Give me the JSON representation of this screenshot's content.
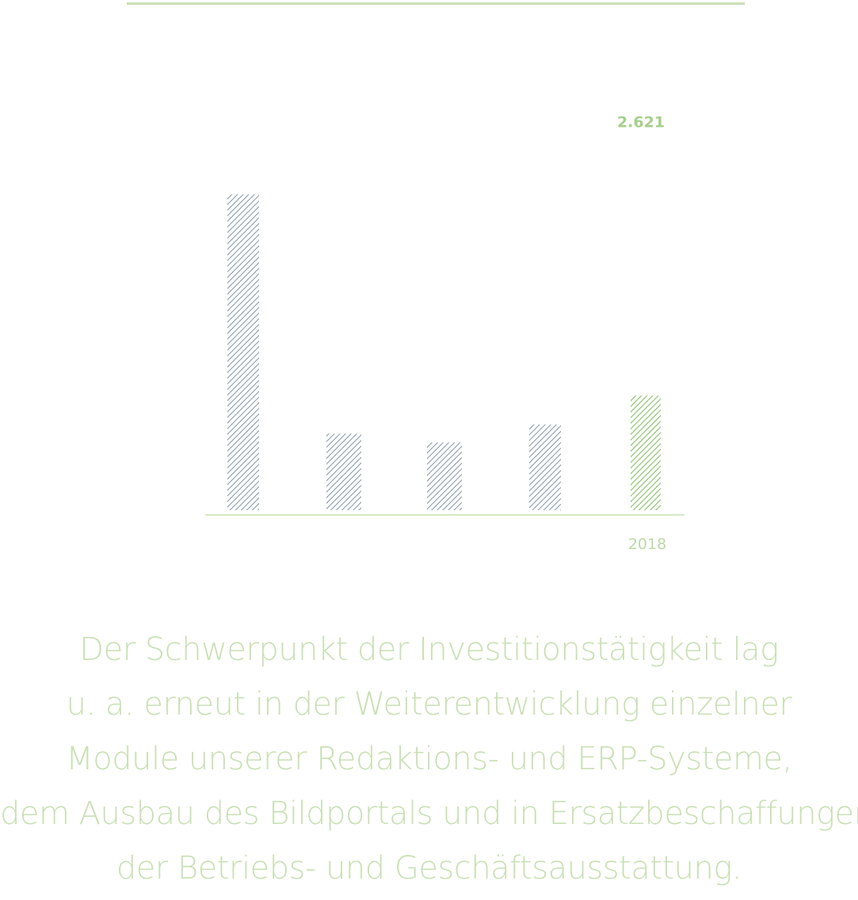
{
  "colors": {
    "accent_green": "#c9e0b4",
    "highlight_bar": "#96c87a",
    "highlight_label": "#a5cf8a",
    "history_bar": "#8d9cad",
    "axis_label": "#bdd8a8"
  },
  "chart_data": {
    "type": "bar",
    "categories": [
      "",
      "",
      "",
      "",
      "2018"
    ],
    "values": [
      7220,
      1750,
      1550,
      1960,
      2621
    ],
    "data_labels": [
      "",
      "",
      "",
      "",
      "2.621"
    ],
    "highlight_index": 4,
    "ylim": [
      0,
      9200
    ],
    "grid": false,
    "legend": "none"
  },
  "caption": {
    "lines": [
      "Der Schwerpunkt der Investitionstätigkeit lag",
      "u. a. erneut in der Weiterentwicklung einzelner",
      "Module unserer Redaktions- und ERP-Systeme,",
      "dem Ausbau des Bildportals und in Ersatzbeschaffungen",
      "der Betriebs- und Geschäftsausstattung."
    ]
  }
}
